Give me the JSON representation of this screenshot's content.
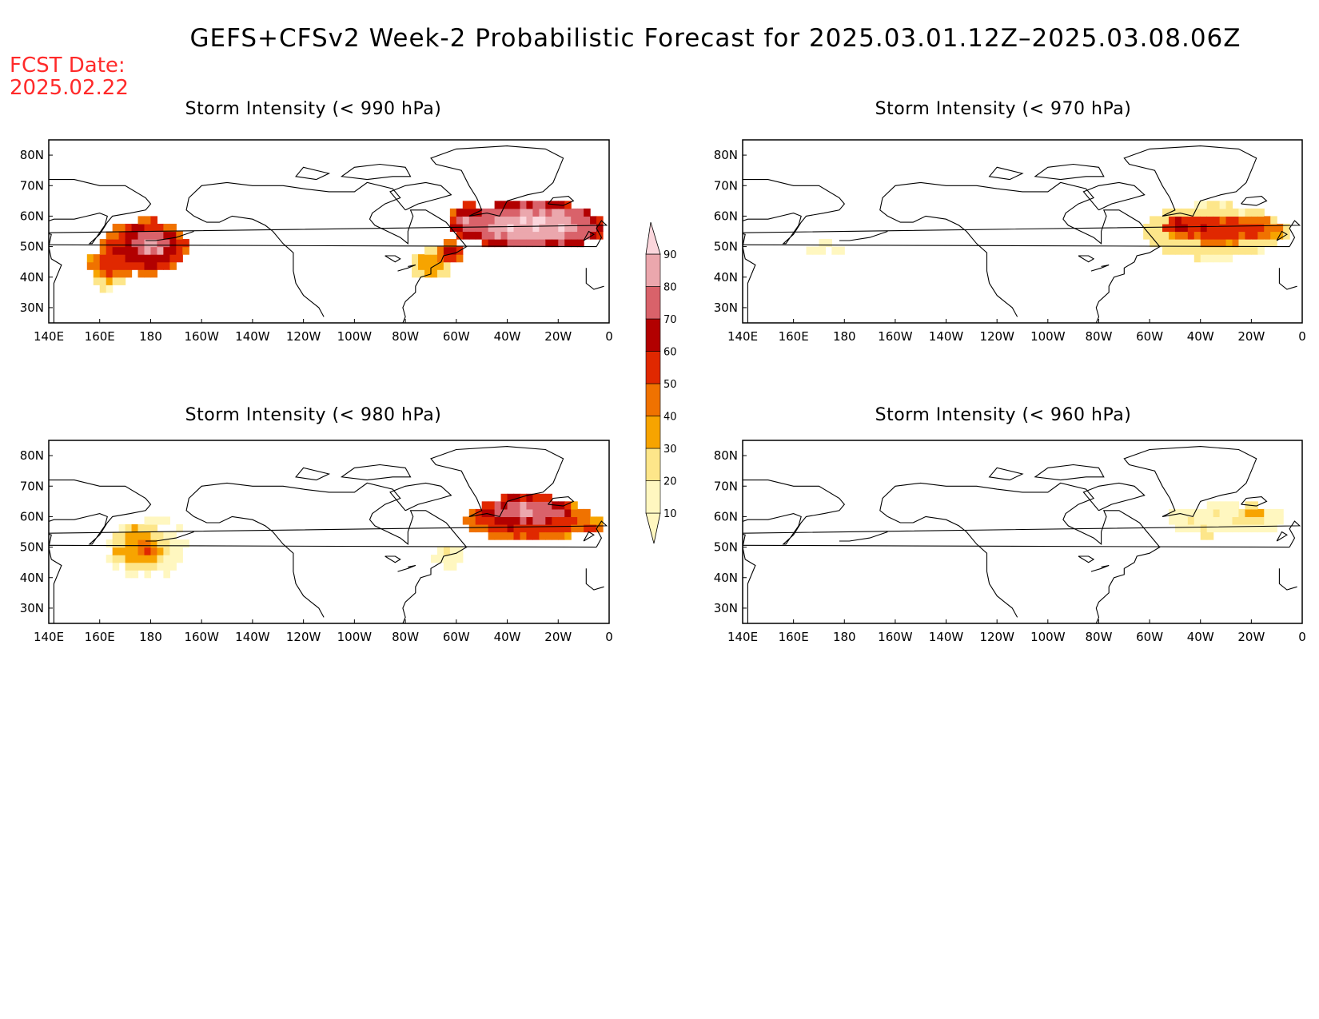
{
  "title": "GEFS+CFSv2 Week-2 Probabilistic Forecast for 2025.03.01.12Z–2025.03.08.06Z",
  "fcst_label": "FCST Date:",
  "fcst_date": "2025.02.22",
  "x_ticks": [
    "140E",
    "160E",
    "180",
    "160W",
    "140W",
    "120W",
    "100W",
    "80W",
    "60W",
    "40W",
    "20W",
    "0"
  ],
  "y_ticks": [
    "80N",
    "70N",
    "60N",
    "50N",
    "40N",
    "30N"
  ],
  "colorbar": {
    "levels": [
      10,
      20,
      30,
      40,
      50,
      60,
      70,
      80,
      90
    ],
    "labels": [
      "10",
      "20",
      "30",
      "40",
      "50",
      "60",
      "70",
      "80",
      "90"
    ],
    "colors": [
      "#fff7c0",
      "#fde68a",
      "#f7a400",
      "#f07200",
      "#e02800",
      "#b20000",
      "#d9626a",
      "#eba7ad",
      "#fbd6dc"
    ]
  },
  "panels": [
    {
      "id": "p990",
      "title": "Storm Intensity (< 990 hPa)",
      "blobs": [
        {
          "lon": 178,
          "lat": 50,
          "rx": 17,
          "ry": 9,
          "p": 70
        },
        {
          "lon": 180,
          "lat": 51,
          "rx": 11,
          "ry": 6,
          "p": 85
        },
        {
          "lon": 165,
          "lat": 44,
          "rx": 10,
          "ry": 5,
          "p": 55
        },
        {
          "lon": 163,
          "lat": 39,
          "rx": 6,
          "ry": 3,
          "p": 30
        },
        {
          "lon": -70,
          "lat": 44,
          "rx": 8,
          "ry": 5,
          "p": 38
        },
        {
          "lon": -62,
          "lat": 48,
          "rx": 5,
          "ry": 4,
          "p": 60
        },
        {
          "lon": -30,
          "lat": 57,
          "rx": 28,
          "ry": 8,
          "p": 92
        },
        {
          "lon": -55,
          "lat": 58,
          "rx": 8,
          "ry": 6,
          "p": 78
        },
        {
          "lon": -5,
          "lat": 55,
          "rx": 4,
          "ry": 3,
          "p": 62
        }
      ]
    },
    {
      "id": "p970",
      "title": "Storm Intensity (< 970 hPa)",
      "blobs": [
        {
          "lon": -35,
          "lat": 55,
          "rx": 28,
          "ry": 9,
          "p": 30
        },
        {
          "lon": -32,
          "lat": 56,
          "rx": 24,
          "ry": 5,
          "p": 58
        },
        {
          "lon": -48,
          "lat": 57,
          "rx": 7,
          "ry": 3,
          "p": 68
        },
        {
          "lon": 174,
          "lat": 50,
          "rx": 9,
          "ry": 3,
          "p": 12
        },
        {
          "lon": -10,
          "lat": 55,
          "rx": 5,
          "ry": 3,
          "p": 35
        }
      ]
    },
    {
      "id": "p980",
      "title": "Storm Intensity (< 980 hPa)",
      "blobs": [
        {
          "lon": 178,
          "lat": 50,
          "rx": 18,
          "ry": 10,
          "p": 15
        },
        {
          "lon": 176,
          "lat": 50,
          "rx": 12,
          "ry": 7,
          "p": 38
        },
        {
          "lon": 178,
          "lat": 50,
          "rx": 5,
          "ry": 3,
          "p": 52
        },
        {
          "lon": -32,
          "lat": 59,
          "rx": 25,
          "ry": 7,
          "p": 62
        },
        {
          "lon": -32,
          "lat": 62,
          "rx": 18,
          "ry": 5,
          "p": 82
        },
        {
          "lon": -63,
          "lat": 47,
          "rx": 6,
          "ry": 4,
          "p": 18
        },
        {
          "lon": -8,
          "lat": 57,
          "rx": 6,
          "ry": 3,
          "p": 52
        }
      ]
    },
    {
      "id": "p960",
      "title": "Storm Intensity (< 960 hPa)",
      "blobs": [
        {
          "lon": -30,
          "lat": 59,
          "rx": 24,
          "ry": 5,
          "p": 18
        },
        {
          "lon": -20,
          "lat": 61,
          "rx": 6,
          "ry": 3,
          "p": 35
        },
        {
          "lon": -38,
          "lat": 55,
          "rx": 4,
          "ry": 2,
          "p": 28
        }
      ]
    }
  ]
}
